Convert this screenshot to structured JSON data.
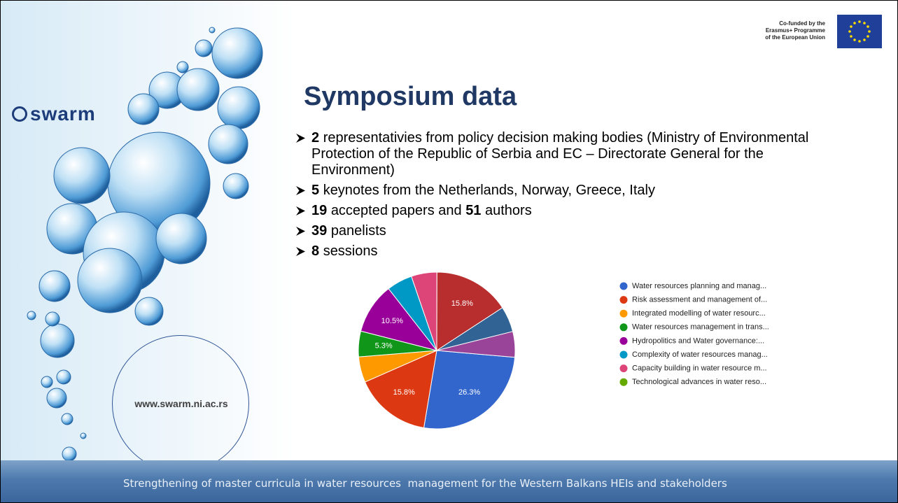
{
  "logo": "swarm",
  "eu_funding": [
    "Co-funded by the",
    "Erasmus+ Programme",
    "of the European Union"
  ],
  "title": "Symposium data",
  "bullets": [
    [
      2,
      "representativies from policy decision making bodies (Ministry of Environmental Protection of the Republic of Serbia and EC – Directorate General for the Environment)"
    ],
    [
      5,
      "keynotes from the Netherlands, Norway, Greece, Italy"
    ],
    [
      19,
      "accepted papers and",
      51,
      "authors"
    ],
    [
      39,
      "panelists"
    ],
    [
      8,
      "sessions"
    ]
  ],
  "website": "www.swarm.ni.ac.rs",
  "footer": "Strengthening of master curricula in water resources  management for the Western Balkans HEIs and stakeholders",
  "chart_data": {
    "type": "pie",
    "categories": [
      "Water resources planning and manag...",
      "Risk assessment and management of...",
      "Integrated modelling of water resourc...",
      "Water resources management in trans...",
      "Hydropolitics and Water governance:...",
      "Complexity of water resources manag...",
      "Capacity building in water resource m...",
      "Technological advances in water reso...",
      null,
      null,
      null
    ],
    "values": [
      26.3,
      15.8,
      5.3,
      5.3,
      10.5,
      5.3,
      5.3,
      0,
      15.8,
      5.3,
      5.3
    ],
    "value_labels": [
      "26.3%",
      "15.8%",
      null,
      "5.3%",
      "10.5%",
      null,
      null,
      null,
      "15.8%",
      null,
      null
    ],
    "colors": [
      "#3366cc",
      "#dc3912",
      "#ff9900",
      "#109618",
      "#990099",
      "#0099c6",
      "#dd4477",
      "#66aa00",
      "#b82e2e",
      "#316395",
      "#994499"
    ]
  }
}
